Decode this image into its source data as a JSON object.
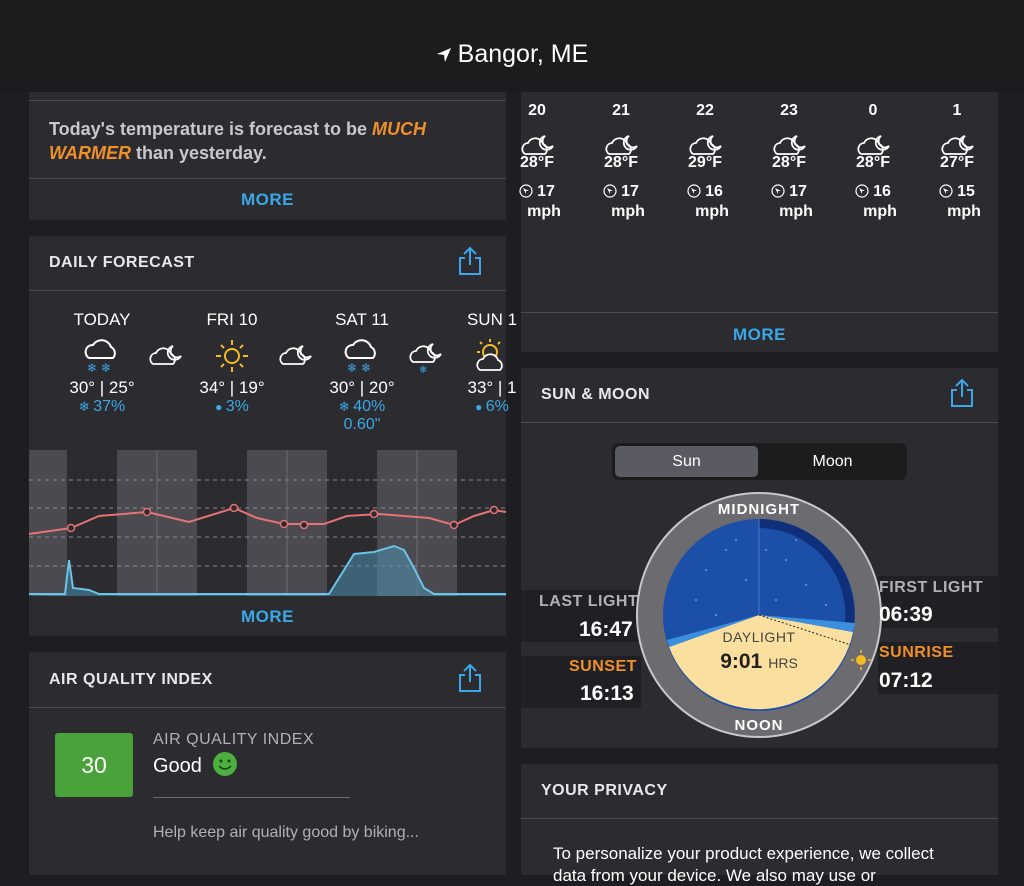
{
  "header": {
    "location": "Bangor, ME"
  },
  "summary": {
    "text_before": "Today's temperature is forecast to be ",
    "highlight_a": "MUCH",
    "highlight_b": "WARMER",
    "text_after": " than yesterday.",
    "more": "MORE"
  },
  "daily": {
    "title": "DAILY FORECAST",
    "more": "MORE",
    "days": [
      {
        "name": "TODAY",
        "temps": "30° | 25°",
        "precip": "37%",
        "precip_icon": "snowflake-icon",
        "accum": ""
      },
      {
        "name": "FRI 10",
        "temps": "34° | 19°",
        "precip": "3%",
        "precip_icon": "raindrop-icon",
        "accum": ""
      },
      {
        "name": "SAT 11",
        "temps": "30° | 20°",
        "precip": "40%",
        "precip_icon": "snowflake-icon",
        "accum": "0.60\""
      },
      {
        "name": "SUN 1",
        "temps": "33° | 1",
        "precip": "6%",
        "precip_icon": "raindrop-icon",
        "accum": ""
      }
    ]
  },
  "hourly": {
    "more": "MORE",
    "hours": [
      {
        "hour": "20",
        "temp": "28°F",
        "wind": "17",
        "unit": "mph"
      },
      {
        "hour": "21",
        "temp": "28°F",
        "wind": "17",
        "unit": "mph"
      },
      {
        "hour": "22",
        "temp": "29°F",
        "wind": "16",
        "unit": "mph"
      },
      {
        "hour": "23",
        "temp": "28°F",
        "wind": "17",
        "unit": "mph"
      },
      {
        "hour": "0",
        "temp": "28°F",
        "wind": "16",
        "unit": "mph"
      },
      {
        "hour": "1",
        "temp": "27°F",
        "wind": "15",
        "unit": "mph"
      }
    ]
  },
  "sun_moon": {
    "title": "SUN & MOON",
    "tab_sun": "Sun",
    "tab_moon": "Moon",
    "midnight": "MIDNIGHT",
    "noon": "NOON",
    "last_light_label": "LAST LIGHT",
    "last_light": "16:47",
    "sunset_label": "SUNSET",
    "sunset": "16:13",
    "first_light_label": "FIRST LIGHT",
    "first_light": "06:39",
    "sunrise_label": "SUNRISE",
    "sunrise": "07:12",
    "daylight_label": "DAYLIGHT",
    "daylight": "9:01",
    "daylight_unit": "HRS"
  },
  "aqi": {
    "title": "AIR QUALITY INDEX",
    "value": "30",
    "label": "AIR QUALITY INDEX",
    "status": "Good",
    "tip": "Help keep air quality good by biking..."
  },
  "privacy": {
    "title": "YOUR PRIVACY",
    "text": "To personalize your product experience, we collect",
    "text2": "data from your device. We also may use or"
  },
  "colors": {
    "accent": "#3aa8e8",
    "orange": "#f0902a",
    "aqi_good": "#49a23a",
    "temp_line": "#e57373",
    "precip_line": "#6cc3e8"
  }
}
